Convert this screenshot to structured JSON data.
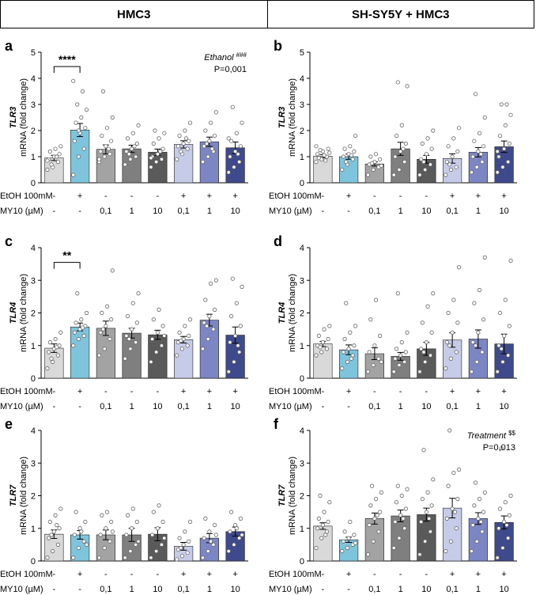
{
  "header": {
    "left_title": "HMC3",
    "right_title": "SH-SY5Y + HMC3"
  },
  "common": {
    "ylabel_gene_prefix": "TLR",
    "ylabel_suffix": "mRNA (fold change)",
    "row_labels": [
      "EtOH 100mM",
      "MY10 (µM)"
    ],
    "etoh_values": [
      "-",
      "+",
      "-",
      "-",
      "-",
      "+",
      "+",
      "+"
    ],
    "my10_values": [
      "-",
      "-",
      "0,1",
      "1",
      "10",
      "0,1",
      "1",
      "10"
    ],
    "bar_colors": [
      "#d9d9d9",
      "#7ec4dd",
      "#a3a3a3",
      "#7f7f7f",
      "#5a5a5a",
      "#c6cbe8",
      "#7d86c4",
      "#3f4a8c"
    ]
  },
  "chart_data": [
    {
      "panel": "a",
      "type": "bar",
      "gene": "TLR3",
      "ylabel_gene": "TLR3",
      "ylim": [
        0,
        5
      ],
      "yticks": [
        "0",
        "1",
        "2",
        "3",
        "4",
        "5"
      ],
      "values": [
        0.95,
        2.02,
        1.28,
        1.3,
        1.17,
        1.47,
        1.57,
        1.34
      ],
      "errors": [
        0.1,
        0.25,
        0.17,
        0.14,
        0.12,
        0.14,
        0.18,
        0.22
      ],
      "points": [
        [
          0.5,
          0.6,
          0.8,
          0.9,
          1.0,
          1.1,
          1.2,
          1.3,
          1.4,
          0.7,
          1.0,
          0.85
        ],
        [
          0.3,
          1.0,
          1.3,
          1.6,
          1.9,
          2.1,
          2.3,
          2.5,
          2.8,
          3.0,
          3.5,
          3.9,
          2.0
        ],
        [
          0.8,
          1.0,
          1.1,
          1.2,
          1.4,
          1.6,
          1.8,
          2.1,
          2.5,
          3.5,
          1.3,
          0.9
        ],
        [
          0.7,
          0.9,
          1.0,
          1.2,
          1.3,
          1.5,
          1.7,
          1.9,
          2.2,
          1.1,
          1.4
        ],
        [
          0.6,
          0.8,
          0.9,
          1.0,
          1.1,
          1.3,
          1.5,
          1.7,
          1.9,
          2.0,
          1.2,
          0.95
        ],
        [
          0.9,
          1.1,
          1.3,
          1.4,
          1.5,
          1.6,
          1.8,
          2.0,
          2.3,
          1.2,
          1.7
        ],
        [
          0.8,
          1.0,
          1.2,
          1.4,
          1.6,
          1.8,
          2.0,
          2.3,
          2.7,
          1.5,
          1.3
        ],
        [
          0.4,
          0.6,
          0.8,
          1.0,
          1.2,
          1.4,
          1.6,
          1.9,
          2.3,
          2.9,
          1.1,
          1.7
        ]
      ],
      "sig_bracket": {
        "from": 0,
        "to": 1,
        "label": "****",
        "y": 4.45
      },
      "annotation_lines": [
        "Ethanol",
        "###",
        "P=0,001"
      ]
    },
    {
      "panel": "b",
      "type": "bar",
      "gene": "TLR3",
      "ylabel_gene": "TLR3",
      "ylim": [
        0,
        5
      ],
      "yticks": [
        "0",
        "1",
        "2",
        "3",
        "4",
        "5"
      ],
      "values": [
        1.02,
        1.0,
        0.72,
        1.3,
        0.9,
        0.93,
        1.17,
        1.38
      ],
      "errors": [
        0.06,
        0.1,
        0.08,
        0.25,
        0.15,
        0.18,
        0.18,
        0.22
      ],
      "points": [
        [
          0.8,
          0.9,
          1.0,
          1.1,
          1.2,
          1.3,
          0.95,
          1.05,
          1.15,
          1.25,
          0.85,
          1.4
        ],
        [
          0.5,
          0.7,
          0.9,
          1.0,
          1.1,
          1.2,
          1.3,
          1.4,
          1.8,
          0.8,
          1.05
        ],
        [
          0.3,
          0.5,
          0.6,
          0.7,
          0.8,
          0.9,
          1.0,
          1.1,
          0.65,
          0.75
        ],
        [
          0.3,
          0.5,
          0.8,
          1.0,
          1.2,
          1.5,
          1.8,
          2.2,
          3.7,
          3.85,
          1.3
        ],
        [
          0.3,
          0.5,
          0.7,
          0.9,
          1.1,
          1.3,
          1.5,
          1.7,
          2.0,
          0.8
        ],
        [
          0.3,
          0.5,
          0.6,
          0.8,
          1.0,
          1.2,
          1.4,
          1.7,
          2.1,
          0.7
        ],
        [
          0.4,
          0.6,
          0.8,
          1.0,
          1.2,
          1.4,
          1.6,
          1.9,
          2.5,
          3.4,
          1.1
        ],
        [
          0.4,
          0.6,
          0.8,
          1.0,
          1.3,
          1.5,
          1.8,
          2.2,
          2.6,
          3.0,
          3.0,
          1.2
        ]
      ],
      "sig_bracket": null,
      "annotation_lines": []
    },
    {
      "panel": "c",
      "type": "bar",
      "gene": "TLR4",
      "ylabel_gene": "TLR4",
      "ylim": [
        0,
        4
      ],
      "yticks": [
        "0",
        "1",
        "2",
        "3",
        "4"
      ],
      "values": [
        0.92,
        1.57,
        1.53,
        1.38,
        1.33,
        1.18,
        1.78,
        1.32
      ],
      "errors": [
        0.13,
        0.12,
        0.22,
        0.15,
        0.14,
        0.1,
        0.18,
        0.25
      ],
      "points": [
        [
          0.3,
          0.5,
          0.7,
          0.8,
          0.9,
          1.0,
          1.1,
          1.2,
          1.4,
          0.6,
          0.95
        ],
        [
          1.0,
          1.2,
          1.3,
          1.4,
          1.5,
          1.6,
          1.7,
          1.8,
          2.0,
          2.6,
          1.55
        ],
        [
          0.7,
          0.9,
          1.2,
          1.4,
          1.6,
          1.8,
          2.0,
          2.2,
          3.3,
          1.5
        ],
        [
          0.6,
          0.9,
          1.1,
          1.3,
          1.5,
          1.7,
          1.9,
          2.3,
          2.6,
          1.2
        ],
        [
          0.5,
          0.8,
          1.0,
          1.2,
          1.4,
          1.6,
          1.8,
          2.1,
          1.3
        ],
        [
          0.7,
          0.9,
          1.0,
          1.1,
          1.2,
          1.3,
          1.4,
          1.6,
          1.8,
          1.15
        ],
        [
          0.9,
          1.2,
          1.5,
          1.7,
          1.9,
          2.1,
          2.4,
          2.9,
          3.0,
          1.6
        ],
        [
          0.2,
          0.5,
          0.8,
          1.1,
          1.3,
          1.6,
          1.9,
          2.3,
          2.8,
          3.05,
          1.0
        ]
      ],
      "sig_bracket": {
        "from": 0,
        "to": 1,
        "label": "**",
        "y": 3.55
      },
      "annotation_lines": []
    },
    {
      "panel": "d",
      "type": "bar",
      "gene": "TLR4",
      "ylabel_gene": "TLR4",
      "ylim": [
        0,
        4
      ],
      "yticks": [
        "0",
        "1",
        "2",
        "3",
        "4"
      ],
      "values": [
        1.05,
        0.87,
        0.75,
        0.67,
        0.9,
        1.17,
        1.2,
        1.05
      ],
      "errors": [
        0.08,
        0.15,
        0.18,
        0.12,
        0.2,
        0.22,
        0.28,
        0.3
      ],
      "points": [
        [
          0.7,
          0.8,
          0.9,
          1.0,
          1.1,
          1.2,
          1.3,
          1.5,
          1.6,
          0.95
        ],
        [
          0.3,
          0.5,
          0.7,
          0.8,
          0.9,
          1.0,
          1.2,
          1.4,
          1.6,
          2.3,
          0.6
        ],
        [
          0.2,
          0.4,
          0.6,
          0.8,
          1.0,
          1.3,
          1.8,
          2.4,
          0.5
        ],
        [
          0.2,
          0.4,
          0.5,
          0.6,
          0.7,
          0.8,
          0.9,
          1.1,
          1.4,
          2.6
        ],
        [
          0.2,
          0.5,
          0.7,
          0.9,
          1.1,
          1.4,
          1.7,
          2.2,
          2.6,
          0.8
        ],
        [
          0.3,
          0.6,
          0.8,
          1.1,
          1.4,
          1.7,
          2.0,
          2.4,
          3.4,
          1.0
        ],
        [
          0.2,
          0.5,
          0.8,
          1.1,
          1.4,
          1.8,
          2.3,
          2.7,
          3.7,
          1.0
        ],
        [
          0.2,
          0.5,
          0.7,
          1.0,
          1.3,
          1.6,
          2.0,
          2.4,
          3.6,
          0.9
        ]
      ],
      "sig_bracket": null,
      "annotation_lines": []
    },
    {
      "panel": "e",
      "type": "bar",
      "gene": "TLR7",
      "ylabel_gene": "TLR7",
      "ylim": [
        0,
        4
      ],
      "yticks": [
        "0",
        "1",
        "2",
        "3",
        "4"
      ],
      "values": [
        0.82,
        0.8,
        0.8,
        0.8,
        0.82,
        0.45,
        0.7,
        0.9
      ],
      "errors": [
        0.13,
        0.13,
        0.15,
        0.2,
        0.2,
        0.12,
        0.14,
        0.14
      ],
      "points": [
        [
          0.1,
          0.3,
          0.5,
          0.7,
          0.9,
          1.0,
          1.2,
          1.4,
          1.6,
          0.8,
          1.1
        ],
        [
          0.1,
          0.4,
          0.6,
          0.8,
          1.0,
          1.2,
          1.5,
          0.9,
          0.5
        ],
        [
          0.1,
          0.4,
          0.6,
          0.8,
          1.0,
          1.2,
          1.4,
          1.5,
          0.9
        ],
        [
          0.1,
          0.3,
          0.5,
          0.8,
          1.0,
          1.2,
          1.4,
          1.6,
          0.6
        ],
        [
          0.1,
          0.3,
          0.5,
          0.8,
          1.0,
          1.2,
          1.5,
          1.7,
          0.7
        ],
        [
          0.05,
          0.15,
          0.25,
          0.35,
          0.5,
          0.6,
          0.7,
          0.9,
          1.2,
          0.4
        ],
        [
          0.1,
          0.3,
          0.5,
          0.7,
          0.9,
          1.1,
          1.3,
          0.6,
          0.8
        ],
        [
          0.3,
          0.5,
          0.7,
          0.9,
          1.1,
          1.3,
          1.5,
          1.0,
          0.8
        ]
      ],
      "sig_bracket": null,
      "annotation_lines": []
    },
    {
      "panel": "f",
      "type": "bar",
      "gene": "TLR7",
      "ylabel_gene": "TLR7",
      "ylim": [
        0,
        4
      ],
      "yticks": [
        "0",
        "1",
        "2",
        "3",
        "4"
      ],
      "values": [
        1.07,
        0.65,
        1.3,
        1.38,
        1.42,
        1.62,
        1.3,
        1.18
      ],
      "errors": [
        0.1,
        0.08,
        0.17,
        0.18,
        0.2,
        0.3,
        0.18,
        0.2
      ],
      "points": [
        [
          0.4,
          0.7,
          0.9,
          1.0,
          1.1,
          1.2,
          1.3,
          1.5,
          1.8,
          2.0,
          0.8
        ],
        [
          0.3,
          0.4,
          0.5,
          0.6,
          0.7,
          0.8,
          0.9,
          1.2,
          0.55
        ],
        [
          0.2,
          0.6,
          0.9,
          1.1,
          1.3,
          1.5,
          1.7,
          1.9,
          2.1,
          2.3,
          1.4
        ],
        [
          0.4,
          0.7,
          1.0,
          1.2,
          1.4,
          1.6,
          1.8,
          2.0,
          2.2,
          2.3,
          1.3
        ],
        [
          0.2,
          0.6,
          0.9,
          1.2,
          1.5,
          1.7,
          1.9,
          2.1,
          2.5,
          3.4,
          1.3
        ],
        [
          0.3,
          0.6,
          1.0,
          1.3,
          1.6,
          1.9,
          2.3,
          2.7,
          2.8,
          4.0,
          1.5
        ],
        [
          0.3,
          0.6,
          0.9,
          1.1,
          1.3,
          1.5,
          1.7,
          1.9,
          2.1,
          2.4,
          1.2
        ],
        [
          0.1,
          0.4,
          0.7,
          1.0,
          1.2,
          1.4,
          1.6,
          1.8,
          2.0,
          3.45,
          1.1
        ]
      ],
      "sig_bracket": null,
      "annotation_lines": [
        "Treatment",
        "$$",
        "P=0,013"
      ]
    }
  ]
}
